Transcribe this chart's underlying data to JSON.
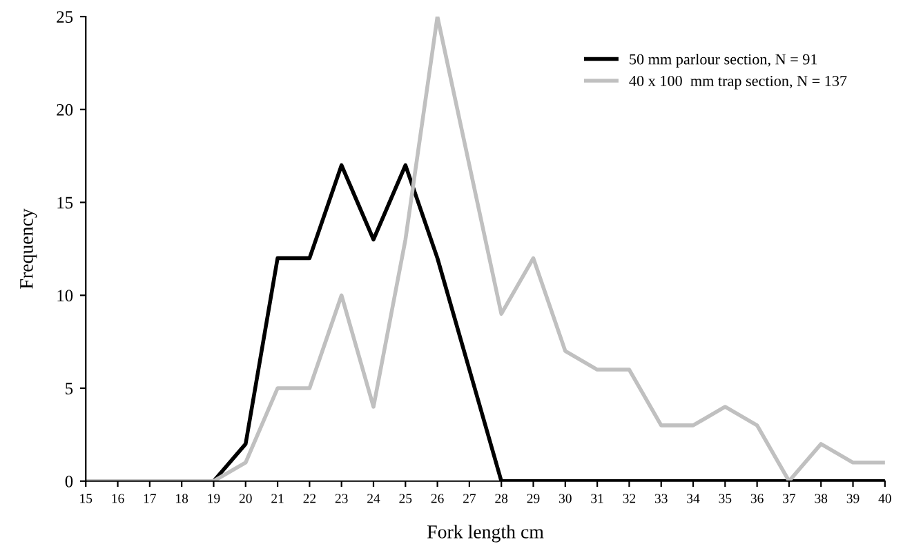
{
  "chart_data": {
    "type": "line",
    "xlabel": "Fork length cm",
    "ylabel": "Frequency",
    "x": [
      15,
      16,
      17,
      18,
      19,
      20,
      21,
      22,
      23,
      24,
      25,
      26,
      27,
      28,
      29,
      30,
      31,
      32,
      33,
      34,
      35,
      36,
      37,
      38,
      39,
      40
    ],
    "series": [
      {
        "name": "50 mm parlour section, N = 91",
        "color": "#000000",
        "values": [
          0,
          0,
          0,
          0,
          0,
          2,
          12,
          12,
          17,
          13,
          17,
          12,
          6,
          0,
          0,
          0,
          0,
          0,
          0,
          0,
          0,
          0,
          0,
          0,
          0,
          0
        ]
      },
      {
        "name": "40 x 100  mm trap section, N = 137",
        "color": "#c0c0c0",
        "values": [
          0,
          0,
          0,
          0,
          0,
          1,
          5,
          5,
          10,
          4,
          13,
          25,
          17,
          9,
          12,
          7,
          6,
          6,
          3,
          3,
          4,
          3,
          0,
          2,
          1,
          1
        ]
      }
    ],
    "xlim": [
      15,
      40
    ],
    "xticks": [
      15,
      16,
      17,
      18,
      19,
      20,
      21,
      22,
      23,
      24,
      25,
      26,
      27,
      28,
      29,
      30,
      31,
      32,
      33,
      34,
      35,
      36,
      37,
      38,
      39,
      40
    ],
    "ylim": [
      0,
      25
    ],
    "yticks": [
      0,
      5,
      10,
      15,
      20,
      25
    ],
    "grid": false,
    "legend": "top right",
    "marker": "none",
    "line_style": "solid"
  }
}
